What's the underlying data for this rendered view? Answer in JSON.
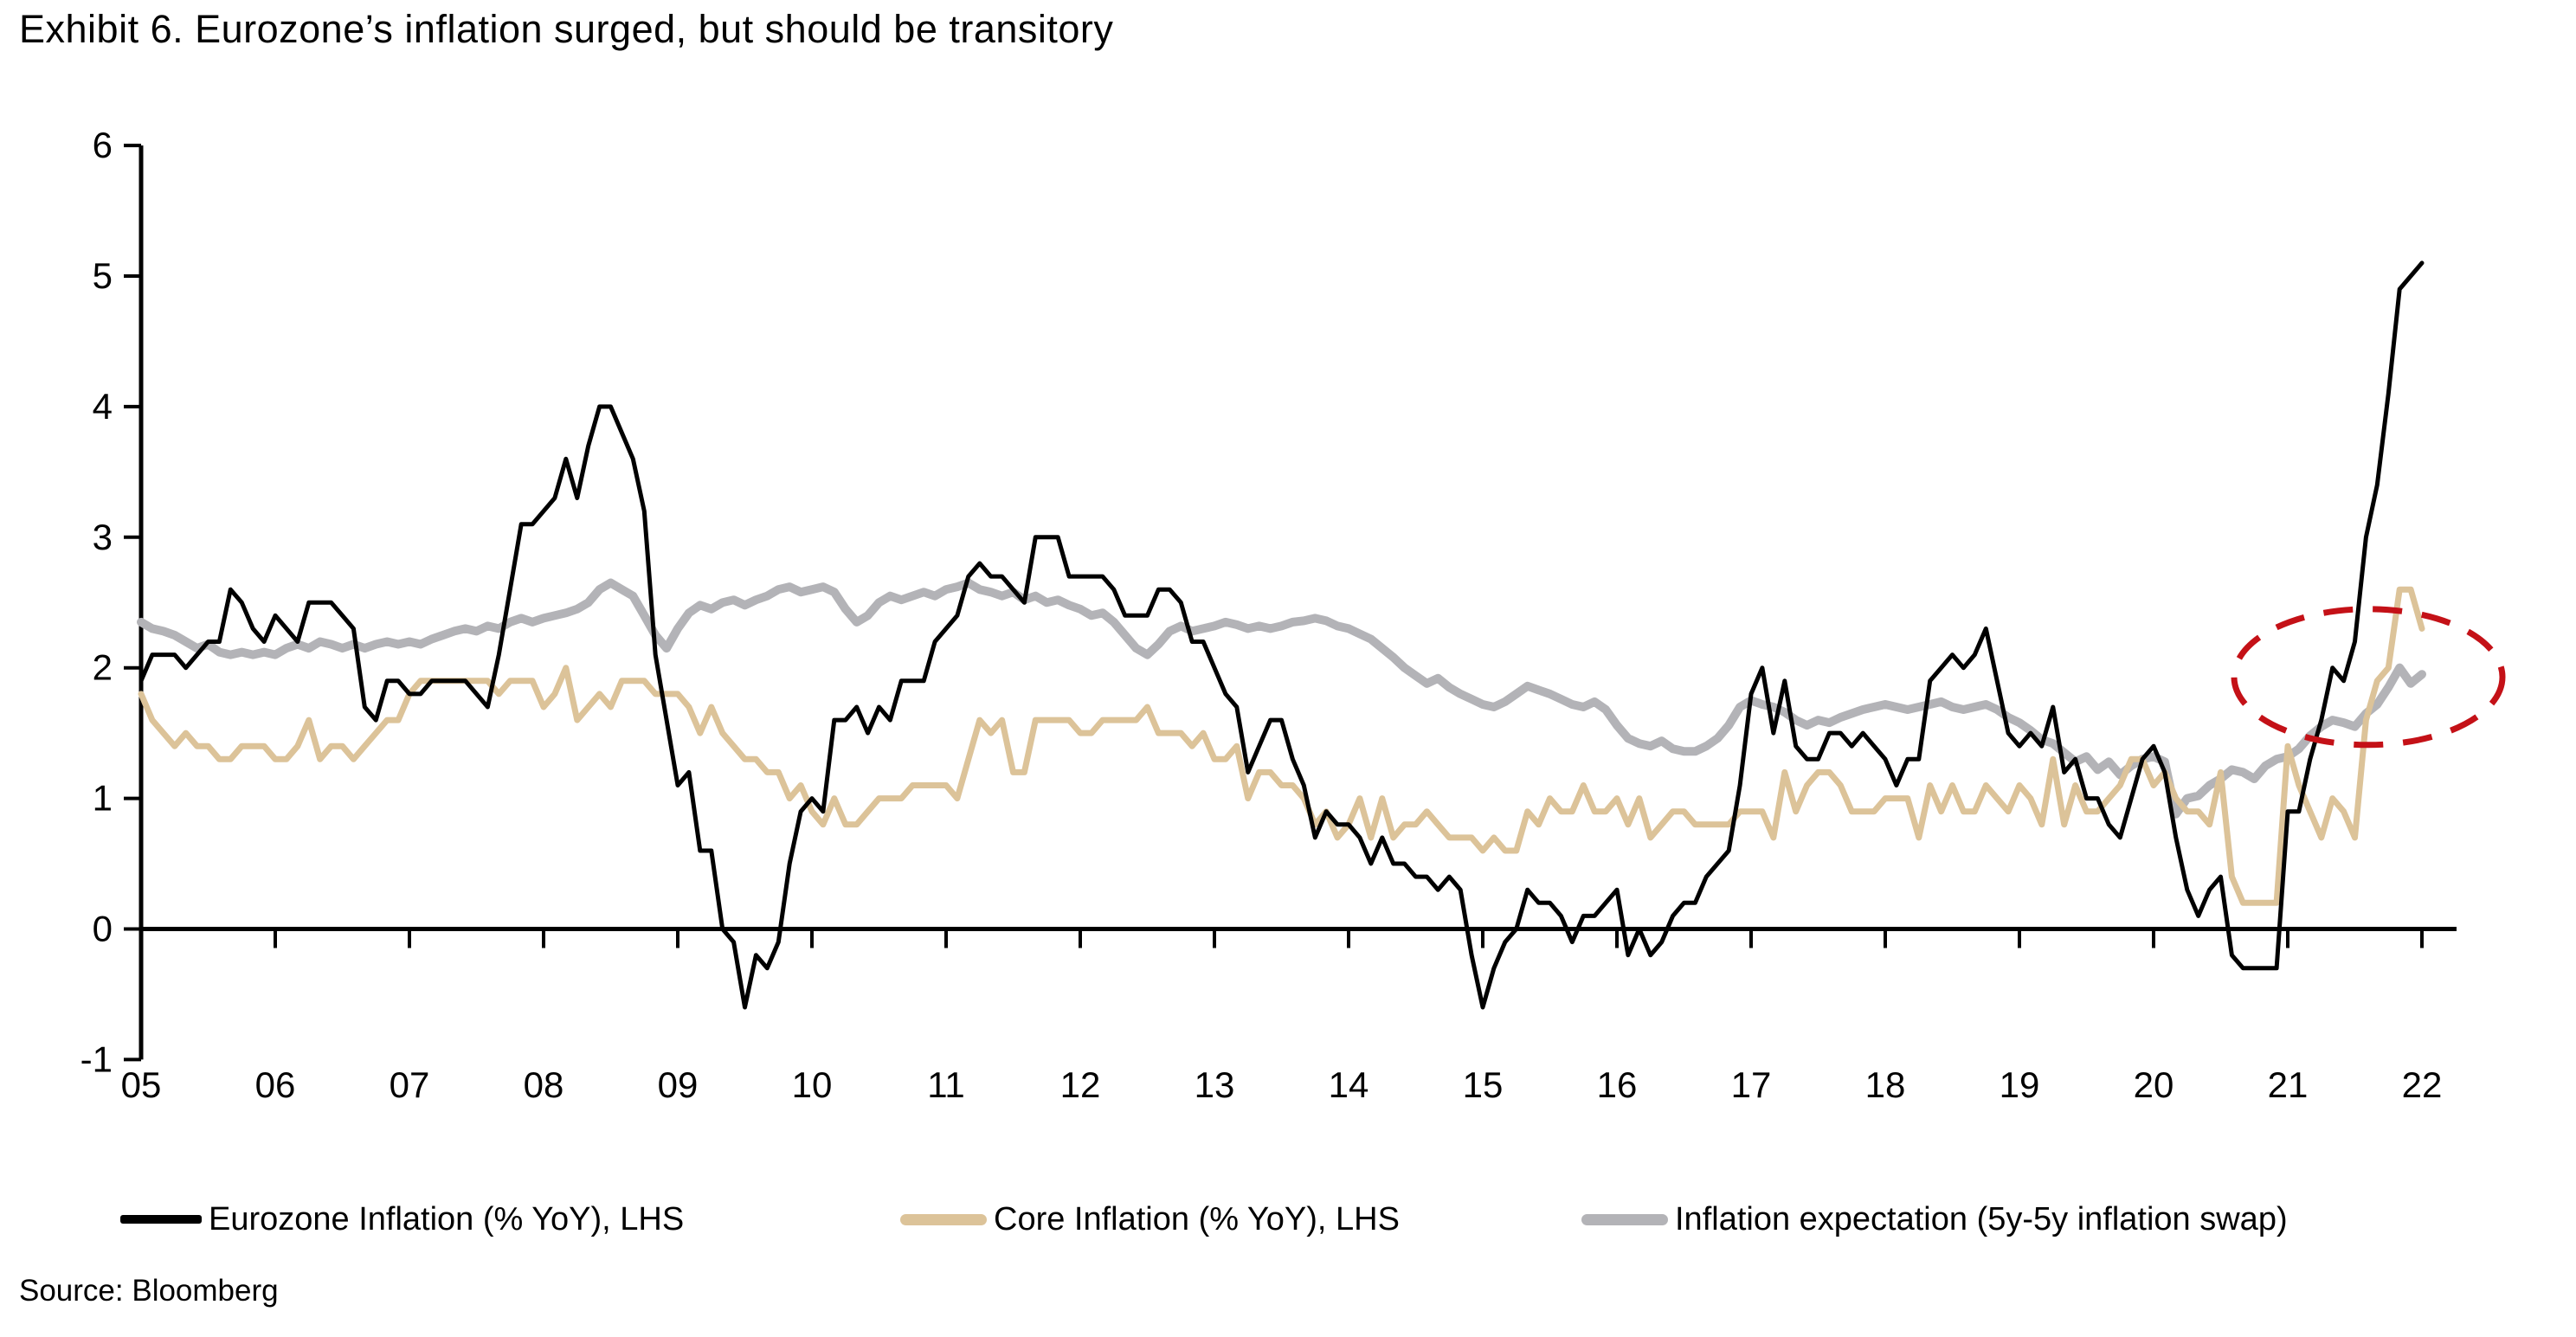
{
  "title": "Exhibit 6. Eurozone’s inflation surged, but should be transitory",
  "source": "Source: Bloomberg",
  "legend": [
    {
      "label": "Eurozone Inflation (% YoY), LHS",
      "color": "#000000"
    },
    {
      "label": "Core Inflation (% YoY), LHS",
      "color": "#DCC399"
    },
    {
      "label": "Inflation expectation (5y-5y inflation swap)",
      "color": "#B3B3B7"
    }
  ],
  "chart_data": {
    "type": "line",
    "title": "Exhibit 6. Eurozone’s inflation surged, but should be transitory",
    "x_start_year": 2005,
    "x_frequency": "monthly",
    "x_tick_labels": [
      "05",
      "06",
      "07",
      "08",
      "09",
      "10",
      "11",
      "12",
      "13",
      "14",
      "15",
      "16",
      "17",
      "18",
      "19",
      "20",
      "21",
      "22"
    ],
    "ylim": [
      -1,
      6
    ],
    "y_ticks": [
      -1,
      0,
      1,
      2,
      3,
      4,
      5,
      6
    ],
    "grid": false,
    "legend_position": "bottom",
    "axis_color": "#000000",
    "series": [
      {
        "name": "Eurozone Inflation (% YoY), LHS",
        "color": "#000000",
        "width": 5,
        "values": [
          1.9,
          2.1,
          2.1,
          2.1,
          2.0,
          2.1,
          2.2,
          2.2,
          2.6,
          2.5,
          2.3,
          2.2,
          2.4,
          2.3,
          2.2,
          2.5,
          2.5,
          2.5,
          2.4,
          2.3,
          1.7,
          1.6,
          1.9,
          1.9,
          1.8,
          1.8,
          1.9,
          1.9,
          1.9,
          1.9,
          1.8,
          1.7,
          2.1,
          2.6,
          3.1,
          3.1,
          3.2,
          3.3,
          3.6,
          3.3,
          3.7,
          4.0,
          4.0,
          3.8,
          3.6,
          3.2,
          2.1,
          1.6,
          1.1,
          1.2,
          0.6,
          0.6,
          0.0,
          -0.1,
          -0.6,
          -0.2,
          -0.3,
          -0.1,
          0.5,
          0.9,
          1.0,
          0.9,
          1.6,
          1.6,
          1.7,
          1.5,
          1.7,
          1.6,
          1.9,
          1.9,
          1.9,
          2.2,
          2.3,
          2.4,
          2.7,
          2.8,
          2.7,
          2.7,
          2.6,
          2.5,
          3.0,
          3.0,
          3.0,
          2.7,
          2.7,
          2.7,
          2.7,
          2.6,
          2.4,
          2.4,
          2.4,
          2.6,
          2.6,
          2.5,
          2.2,
          2.2,
          2.0,
          1.8,
          1.7,
          1.2,
          1.4,
          1.6,
          1.6,
          1.3,
          1.1,
          0.7,
          0.9,
          0.8,
          0.8,
          0.7,
          0.5,
          0.7,
          0.5,
          0.5,
          0.4,
          0.4,
          0.3,
          0.4,
          0.3,
          -0.2,
          -0.6,
          -0.3,
          -0.1,
          0.0,
          0.3,
          0.2,
          0.2,
          0.1,
          -0.1,
          0.1,
          0.1,
          0.2,
          0.3,
          -0.2,
          0.0,
          -0.2,
          -0.1,
          0.1,
          0.2,
          0.2,
          0.4,
          0.5,
          0.6,
          1.1,
          1.8,
          2.0,
          1.5,
          1.9,
          1.4,
          1.3,
          1.3,
          1.5,
          1.5,
          1.4,
          1.5,
          1.4,
          1.3,
          1.1,
          1.3,
          1.3,
          1.9,
          2.0,
          2.1,
          2.0,
          2.1,
          2.3,
          1.9,
          1.5,
          1.4,
          1.5,
          1.4,
          1.7,
          1.2,
          1.3,
          1.0,
          1.0,
          0.8,
          0.7,
          1.0,
          1.3,
          1.4,
          1.2,
          0.7,
          0.3,
          0.1,
          0.3,
          0.4,
          -0.2,
          -0.3,
          -0.3,
          -0.3,
          -0.3,
          0.9,
          0.9,
          1.3,
          1.6,
          2.0,
          1.9,
          2.2,
          3.0,
          3.4,
          4.1,
          4.9,
          5.0,
          5.1
        ]
      },
      {
        "name": "Core Inflation (% YoY), LHS",
        "color": "#DCC399",
        "width": 7,
        "values": [
          1.8,
          1.6,
          1.5,
          1.4,
          1.5,
          1.4,
          1.4,
          1.3,
          1.3,
          1.4,
          1.4,
          1.4,
          1.3,
          1.3,
          1.4,
          1.6,
          1.3,
          1.4,
          1.4,
          1.3,
          1.4,
          1.5,
          1.6,
          1.6,
          1.8,
          1.9,
          1.9,
          1.9,
          1.9,
          1.9,
          1.9,
          1.9,
          1.8,
          1.9,
          1.9,
          1.9,
          1.7,
          1.8,
          2.0,
          1.6,
          1.7,
          1.8,
          1.7,
          1.9,
          1.9,
          1.9,
          1.8,
          1.8,
          1.8,
          1.7,
          1.5,
          1.7,
          1.5,
          1.4,
          1.3,
          1.3,
          1.2,
          1.2,
          1.0,
          1.1,
          0.9,
          0.8,
          1.0,
          0.8,
          0.8,
          0.9,
          1.0,
          1.0,
          1.0,
          1.1,
          1.1,
          1.1,
          1.1,
          1.0,
          1.3,
          1.6,
          1.5,
          1.6,
          1.2,
          1.2,
          1.6,
          1.6,
          1.6,
          1.6,
          1.5,
          1.5,
          1.6,
          1.6,
          1.6,
          1.6,
          1.7,
          1.5,
          1.5,
          1.5,
          1.4,
          1.5,
          1.3,
          1.3,
          1.4,
          1.0,
          1.2,
          1.2,
          1.1,
          1.1,
          1.0,
          0.8,
          0.9,
          0.7,
          0.8,
          1.0,
          0.7,
          1.0,
          0.7,
          0.8,
          0.8,
          0.9,
          0.8,
          0.7,
          0.7,
          0.7,
          0.6,
          0.7,
          0.6,
          0.6,
          0.9,
          0.8,
          1.0,
          0.9,
          0.9,
          1.1,
          0.9,
          0.9,
          1.0,
          0.8,
          1.0,
          0.7,
          0.8,
          0.9,
          0.9,
          0.8,
          0.8,
          0.8,
          0.8,
          0.9,
          0.9,
          0.9,
          0.7,
          1.2,
          0.9,
          1.1,
          1.2,
          1.2,
          1.1,
          0.9,
          0.9,
          0.9,
          1.0,
          1.0,
          1.0,
          0.7,
          1.1,
          0.9,
          1.1,
          0.9,
          0.9,
          1.1,
          1.0,
          0.9,
          1.1,
          1.0,
          0.8,
          1.3,
          0.8,
          1.1,
          0.9,
          0.9,
          1.0,
          1.1,
          1.3,
          1.3,
          1.1,
          1.2,
          1.0,
          0.9,
          0.9,
          0.8,
          1.2,
          0.4,
          0.2,
          0.2,
          0.2,
          0.2,
          1.4,
          1.1,
          0.9,
          0.7,
          1.0,
          0.9,
          0.7,
          1.6,
          1.9,
          2.0,
          2.6,
          2.6,
          2.3
        ]
      },
      {
        "name": "Inflation expectation (5y-5y inflation swap)",
        "color": "#B3B3B7",
        "width": 10,
        "values": [
          2.35,
          2.3,
          2.28,
          2.25,
          2.2,
          2.15,
          2.18,
          2.12,
          2.1,
          2.12,
          2.1,
          2.12,
          2.1,
          2.15,
          2.18,
          2.15,
          2.2,
          2.18,
          2.15,
          2.18,
          2.15,
          2.18,
          2.2,
          2.18,
          2.2,
          2.18,
          2.22,
          2.25,
          2.28,
          2.3,
          2.28,
          2.32,
          2.3,
          2.35,
          2.38,
          2.35,
          2.38,
          2.4,
          2.42,
          2.45,
          2.5,
          2.6,
          2.65,
          2.6,
          2.55,
          2.4,
          2.25,
          2.15,
          2.3,
          2.42,
          2.48,
          2.45,
          2.5,
          2.52,
          2.48,
          2.52,
          2.55,
          2.6,
          2.62,
          2.58,
          2.6,
          2.62,
          2.58,
          2.45,
          2.35,
          2.4,
          2.5,
          2.55,
          2.52,
          2.55,
          2.58,
          2.55,
          2.6,
          2.62,
          2.65,
          2.6,
          2.58,
          2.55,
          2.58,
          2.52,
          2.55,
          2.5,
          2.52,
          2.48,
          2.45,
          2.4,
          2.42,
          2.35,
          2.25,
          2.15,
          2.1,
          2.18,
          2.28,
          2.32,
          2.28,
          2.3,
          2.32,
          2.35,
          2.33,
          2.3,
          2.32,
          2.3,
          2.32,
          2.35,
          2.36,
          2.38,
          2.36,
          2.32,
          2.3,
          2.26,
          2.22,
          2.15,
          2.08,
          2.0,
          1.94,
          1.88,
          1.92,
          1.85,
          1.8,
          1.76,
          1.72,
          1.7,
          1.74,
          1.8,
          1.86,
          1.83,
          1.8,
          1.76,
          1.72,
          1.7,
          1.74,
          1.68,
          1.56,
          1.46,
          1.42,
          1.4,
          1.44,
          1.38,
          1.36,
          1.36,
          1.4,
          1.46,
          1.56,
          1.7,
          1.75,
          1.72,
          1.7,
          1.66,
          1.6,
          1.56,
          1.6,
          1.58,
          1.62,
          1.65,
          1.68,
          1.7,
          1.72,
          1.7,
          1.68,
          1.7,
          1.72,
          1.74,
          1.7,
          1.68,
          1.7,
          1.72,
          1.68,
          1.62,
          1.58,
          1.52,
          1.45,
          1.42,
          1.35,
          1.28,
          1.32,
          1.22,
          1.28,
          1.18,
          1.25,
          1.3,
          1.32,
          1.28,
          0.88,
          1.0,
          1.02,
          1.1,
          1.15,
          1.22,
          1.2,
          1.15,
          1.25,
          1.3,
          1.32,
          1.38,
          1.48,
          1.55,
          1.6,
          1.58,
          1.55,
          1.65,
          1.72,
          1.85,
          2.0,
          1.88,
          1.95
        ]
      }
    ],
    "annotation": {
      "type": "dashed-ellipse",
      "color": "#C41117",
      "stroke_width": 7,
      "center_year": 2021.6,
      "center_value": 1.93,
      "radius_years": 1.0,
      "radius_value": 0.52
    }
  }
}
